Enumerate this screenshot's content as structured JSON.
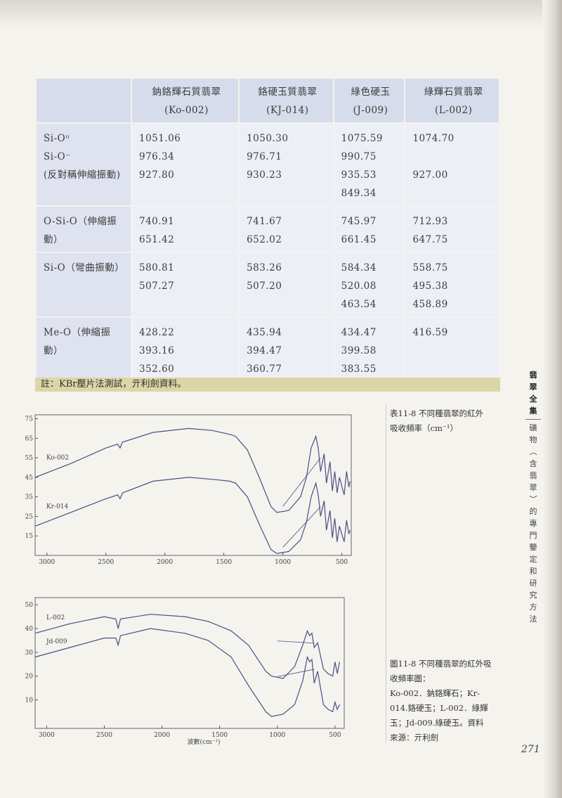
{
  "table": {
    "headers": [
      {
        "name": "鈉鉻輝石質翡翠",
        "code": "(Ko-002)"
      },
      {
        "name": "鉻硬玉質翡翠",
        "code": "(KJ-014)"
      },
      {
        "name": "綠色硬玉",
        "code": "(J-009)"
      },
      {
        "name": "綠輝石質翡翠",
        "code": "(L-002)"
      }
    ],
    "rows": [
      {
        "label": [
          "Si-Oᵘ",
          "Si-O⁻",
          "(反對稱伸縮振動)"
        ],
        "cells": [
          [
            "1051.06",
            "976.34",
            "927.80"
          ],
          [
            "1050.30",
            "976.71",
            "930.23"
          ],
          [
            "1075.59",
            "990.75",
            "935.53",
            "849.34"
          ],
          [
            "1074.70",
            "",
            "927.00"
          ]
        ]
      },
      {
        "label": [
          "O-Si-O（伸縮振",
          "動）"
        ],
        "cells": [
          [
            "740.91",
            "651.42"
          ],
          [
            "741.67",
            "652.02"
          ],
          [
            "745.97",
            "661.45"
          ],
          [
            "712.93",
            "647.75"
          ]
        ]
      },
      {
        "label": [
          "Si-O（彎曲振動）"
        ],
        "cells": [
          [
            "580.81",
            "507.27"
          ],
          [
            "583.26",
            "507.20"
          ],
          [
            "584.34",
            "520.08",
            "463.54"
          ],
          [
            "558.75",
            "495.38",
            "458.89"
          ]
        ]
      },
      {
        "label": [
          "Me-O（伸縮振",
          "動）"
        ],
        "cells": [
          [
            "428.22",
            "393.16",
            "352.60"
          ],
          [
            "435.94",
            "394.47",
            "360.77"
          ],
          [
            "434.47",
            "399.58",
            "383.55"
          ],
          [
            "416.59"
          ]
        ]
      }
    ],
    "note": "註：KBr壓片法測試，亓利劍資料。"
  },
  "table_caption": [
    "表11-8 不同種翡翠的紅外",
    "吸收頻率（cm⁻¹）"
  ],
  "figure_caption": [
    "圖11-8 不同種翡翠的紅外吸",
    "收頻率圖：",
    "Ko-002．鈉鉻輝石；Kr-",
    "014.鉻硬玉；L-002．綠輝",
    "玉；Jd-009.綠硬玉。資料",
    "來源：亓利劍"
  ],
  "sidebar": {
    "book": [
      "翡",
      "翠",
      "全",
      "集"
    ],
    "chapter": [
      "礦",
      "物",
      "︵",
      "含",
      "翡",
      "翠",
      "︶",
      "的",
      "專",
      "門",
      "鑒",
      "定",
      "和",
      "研",
      "究",
      "方",
      "法"
    ]
  },
  "page_number": "271",
  "chart_data": [
    {
      "type": "line",
      "xlabel": "",
      "ylabel": "",
      "xticks": [
        "3000",
        "2500",
        "2000",
        "1500",
        "1000",
        "500"
      ],
      "yticks": [
        "75",
        "65",
        "55",
        "45",
        "35",
        "25",
        "15"
      ],
      "xlim": [
        3100,
        420
      ],
      "ylim": [
        5,
        77
      ],
      "series": [
        {
          "name": "Ko-002",
          "x": [
            3100,
            2800,
            2500,
            2400,
            2380,
            2360,
            2100,
            1800,
            1600,
            1450,
            1400,
            1300,
            1200,
            1100,
            1050,
            950,
            850,
            800,
            760,
            720,
            700,
            680,
            650,
            630,
            600,
            580,
            560,
            540,
            520,
            480,
            460,
            440,
            430
          ],
          "y": [
            45,
            52,
            60,
            62,
            60,
            63,
            68,
            70,
            69,
            67,
            66,
            59,
            45,
            30,
            27,
            28,
            35,
            45,
            60,
            66,
            60,
            48,
            57,
            42,
            53,
            38,
            48,
            37,
            45,
            36,
            48,
            40,
            43
          ]
        },
        {
          "name": "Kr-014",
          "x": [
            3100,
            2800,
            2500,
            2400,
            2380,
            2360,
            2100,
            1800,
            1600,
            1450,
            1400,
            1300,
            1200,
            1100,
            1050,
            950,
            850,
            800,
            760,
            720,
            700,
            680,
            650,
            630,
            600,
            580,
            560,
            540,
            520,
            480,
            460,
            440,
            430
          ],
          "y": [
            20,
            27,
            34,
            36,
            34,
            37,
            43,
            45,
            44,
            43,
            42,
            35,
            21,
            8,
            6,
            7,
            13,
            22,
            35,
            42,
            36,
            25,
            33,
            18,
            28,
            14,
            24,
            12,
            20,
            12,
            23,
            16,
            18
          ]
        }
      ]
    },
    {
      "type": "line",
      "xlabel": "波數(cm⁻¹)",
      "ylabel": "",
      "xticks": [
        "3000",
        "2500",
        "2000",
        "1500",
        "1000",
        "500"
      ],
      "yticks": [
        "50",
        "40",
        "30",
        "20",
        "10"
      ],
      "xlim": [
        3100,
        420
      ],
      "ylim": [
        -2,
        53
      ],
      "series": [
        {
          "name": "L-002",
          "x": [
            3100,
            2800,
            2500,
            2400,
            2380,
            2360,
            2100,
            1800,
            1600,
            1400,
            1250,
            1100,
            1050,
            950,
            850,
            780,
            740,
            720,
            700,
            680,
            650,
            600,
            560,
            520,
            500,
            480,
            460
          ],
          "y": [
            38,
            42,
            45,
            44,
            40,
            44,
            46,
            45,
            43,
            39,
            33,
            22,
            20,
            19,
            24,
            33,
            39,
            37,
            38,
            32,
            34,
            23,
            21,
            20,
            26,
            21,
            26
          ]
        },
        {
          "name": "Jd-009",
          "x": [
            3100,
            2800,
            2500,
            2400,
            2380,
            2360,
            2100,
            1800,
            1600,
            1400,
            1250,
            1100,
            1050,
            950,
            850,
            780,
            740,
            720,
            700,
            680,
            650,
            600,
            560,
            520,
            500,
            480,
            460
          ],
          "y": [
            28,
            32,
            36,
            36,
            33,
            37,
            40,
            38,
            35,
            28,
            16,
            5,
            3,
            4,
            8,
            18,
            28,
            26,
            27,
            17,
            22,
            8,
            6,
            5,
            9,
            6,
            8
          ]
        }
      ]
    }
  ]
}
